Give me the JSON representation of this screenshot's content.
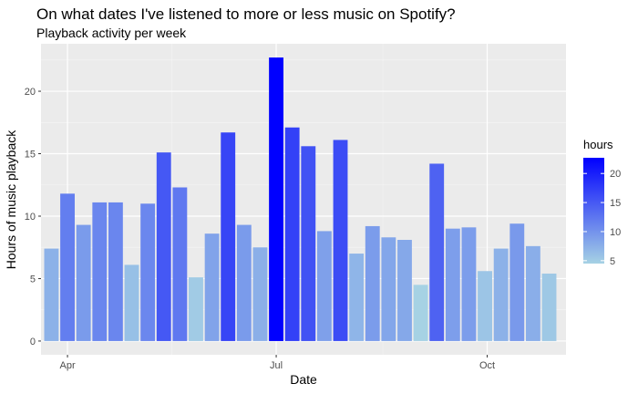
{
  "chart_data": {
    "type": "bar",
    "title": "On what dates I've listened to more or less music on Spotify?",
    "subtitle": "Playback activity per week",
    "xlabel": "Date",
    "ylabel": "Hours of music playback",
    "x_tick_labels": [
      "Apr",
      "Jul",
      "Oct"
    ],
    "y_ticks": [
      0,
      5,
      10,
      15,
      20
    ],
    "ylim": [
      -1.1,
      23.8
    ],
    "grid": true,
    "legend": {
      "title": "hours",
      "position": "right",
      "ticks": [
        5,
        10,
        15,
        20
      ],
      "color_low": "#a6d2e4",
      "color_high": "#0000ff",
      "range": [
        4.5,
        22.7
      ]
    },
    "x_week_dates": [
      "2018-03-25",
      "2018-04-01",
      "2018-04-08",
      "2018-04-15",
      "2018-04-22",
      "2018-04-29",
      "2018-05-06",
      "2018-05-13",
      "2018-05-20",
      "2018-05-27",
      "2018-06-03",
      "2018-06-10",
      "2018-06-17",
      "2018-06-24",
      "2018-07-01",
      "2018-07-08",
      "2018-07-15",
      "2018-07-22",
      "2018-07-29",
      "2018-08-05",
      "2018-08-12",
      "2018-08-19",
      "2018-08-26",
      "2018-09-02",
      "2018-09-09",
      "2018-09-16",
      "2018-09-23",
      "2018-09-30",
      "2018-10-07",
      "2018-10-14",
      "2018-10-21",
      "2018-10-28",
      "2018-11-04"
    ],
    "values": [
      7.4,
      11.8,
      9.3,
      11.1,
      11.1,
      6.1,
      11.0,
      15.1,
      12.3,
      5.1,
      8.6,
      16.7,
      9.3,
      7.5,
      22.7,
      17.1,
      15.6,
      8.8,
      16.1,
      7.0,
      9.2,
      8.3,
      8.1,
      4.5,
      14.2,
      9.0,
      9.1,
      5.6,
      7.4,
      9.4,
      7.6,
      5.4
    ]
  }
}
